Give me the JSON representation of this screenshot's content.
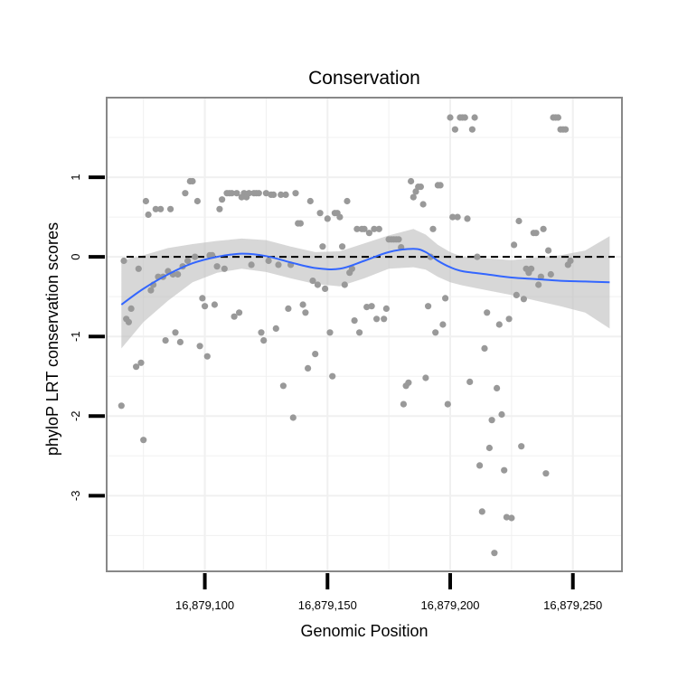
{
  "chart_data": {
    "type": "scatter",
    "title": "Conservation",
    "xlabel": "Genomic Position",
    "ylabel": "phyloP LRT conservation scores",
    "xlim": [
      16879060,
      16879270
    ],
    "ylim": [
      -3.95,
      2.0
    ],
    "x_ticks": [
      16879100,
      16879150,
      16879200,
      16879250
    ],
    "x_tick_labels": [
      "16,879,100",
      "16,879,150",
      "16,879,200",
      "16,879,250"
    ],
    "y_ticks": [
      1,
      0,
      -1,
      -2,
      -3
    ],
    "y_tick_labels": [
      "1",
      "0",
      "-1",
      "-2",
      "-3"
    ],
    "reference_line": {
      "y": 0,
      "style": "dashed"
    },
    "colors": {
      "points": "#999999",
      "smooth": "#3366ff",
      "ribbon": "#bdbdbd",
      "panel_border": "#888888",
      "grid": "#f0f0f0",
      "axis_ticks": "#000000"
    },
    "points": [
      [
        16879066,
        -1.87
      ],
      [
        16879067,
        -0.05
      ],
      [
        16879068,
        -0.78
      ],
      [
        16879069,
        -0.82
      ],
      [
        16879070,
        -0.65
      ],
      [
        16879072,
        -1.38
      ],
      [
        16879073,
        -0.15
      ],
      [
        16879074,
        -1.33
      ],
      [
        16879075,
        -2.3
      ],
      [
        16879076,
        0.7
      ],
      [
        16879077,
        0.53
      ],
      [
        16879078,
        -0.42
      ],
      [
        16879079,
        -0.35
      ],
      [
        16879080,
        0.6
      ],
      [
        16879081,
        -0.25
      ],
      [
        16879082,
        0.6
      ],
      [
        16879083,
        -0.25
      ],
      [
        16879084,
        -1.05
      ],
      [
        16879085,
        -0.18
      ],
      [
        16879086,
        0.6
      ],
      [
        16879087,
        -0.22
      ],
      [
        16879088,
        -0.95
      ],
      [
        16879089,
        -0.22
      ],
      [
        16879090,
        -1.07
      ],
      [
        16879091,
        -0.12
      ],
      [
        16879092,
        0.8
      ],
      [
        16879093,
        -0.05
      ],
      [
        16879094,
        0.95
      ],
      [
        16879095,
        0.95
      ],
      [
        16879096,
        0.0
      ],
      [
        16879097,
        0.7
      ],
      [
        16879098,
        -1.12
      ],
      [
        16879099,
        -0.52
      ],
      [
        16879100,
        -0.62
      ],
      [
        16879101,
        -1.25
      ],
      [
        16879102,
        0.02
      ],
      [
        16879103,
        0.02
      ],
      [
        16879104,
        -0.6
      ],
      [
        16879105,
        -0.12
      ],
      [
        16879106,
        0.6
      ],
      [
        16879107,
        0.72
      ],
      [
        16879108,
        -0.15
      ],
      [
        16879109,
        0.8
      ],
      [
        16879110,
        0.8
      ],
      [
        16879111,
        0.8
      ],
      [
        16879112,
        -0.75
      ],
      [
        16879113,
        0.8
      ],
      [
        16879114,
        -0.7
      ],
      [
        16879115,
        0.75
      ],
      [
        16879116,
        0.8
      ],
      [
        16879117,
        0.75
      ],
      [
        16879118,
        0.8
      ],
      [
        16879119,
        -0.1
      ],
      [
        16879120,
        0.8
      ],
      [
        16879121,
        0.8
      ],
      [
        16879122,
        0.8
      ],
      [
        16879123,
        -0.95
      ],
      [
        16879124,
        -1.05
      ],
      [
        16879125,
        0.8
      ],
      [
        16879126,
        -0.05
      ],
      [
        16879127,
        0.78
      ],
      [
        16879128,
        0.78
      ],
      [
        16879129,
        -0.9
      ],
      [
        16879130,
        -0.1
      ],
      [
        16879131,
        0.78
      ],
      [
        16879132,
        -1.62
      ],
      [
        16879133,
        0.78
      ],
      [
        16879134,
        -0.65
      ],
      [
        16879135,
        -0.1
      ],
      [
        16879136,
        -2.02
      ],
      [
        16879137,
        0.8
      ],
      [
        16879138,
        0.42
      ],
      [
        16879139,
        0.42
      ],
      [
        16879140,
        -0.6
      ],
      [
        16879141,
        -0.7
      ],
      [
        16879142,
        -1.4
      ],
      [
        16879143,
        0.7
      ],
      [
        16879144,
        -0.3
      ],
      [
        16879145,
        -1.22
      ],
      [
        16879146,
        -0.35
      ],
      [
        16879147,
        0.55
      ],
      [
        16879148,
        0.13
      ],
      [
        16879149,
        -0.4
      ],
      [
        16879150,
        0.48
      ],
      [
        16879151,
        -0.95
      ],
      [
        16879152,
        -1.5
      ],
      [
        16879153,
        0.55
      ],
      [
        16879154,
        0.55
      ],
      [
        16879155,
        0.5
      ],
      [
        16879156,
        0.13
      ],
      [
        16879157,
        -0.35
      ],
      [
        16879158,
        0.7
      ],
      [
        16879159,
        -0.2
      ],
      [
        16879160,
        -0.15
      ],
      [
        16879161,
        -0.8
      ],
      [
        16879162,
        0.35
      ],
      [
        16879163,
        -0.95
      ],
      [
        16879164,
        0.35
      ],
      [
        16879165,
        0.35
      ],
      [
        16879166,
        -0.63
      ],
      [
        16879167,
        0.3
      ],
      [
        16879168,
        -0.62
      ],
      [
        16879169,
        0.35
      ],
      [
        16879170,
        -0.78
      ],
      [
        16879171,
        0.35
      ],
      [
        16879173,
        -0.78
      ],
      [
        16879174,
        -0.65
      ],
      [
        16879175,
        0.22
      ],
      [
        16879176,
        0.22
      ],
      [
        16879177,
        0.22
      ],
      [
        16879178,
        0.22
      ],
      [
        16879179,
        0.22
      ],
      [
        16879180,
        0.12
      ],
      [
        16879181,
        -1.85
      ],
      [
        16879182,
        -1.62
      ],
      [
        16879183,
        -1.58
      ],
      [
        16879184,
        0.95
      ],
      [
        16879185,
        0.75
      ],
      [
        16879186,
        0.82
      ],
      [
        16879187,
        0.88
      ],
      [
        16879188,
        0.88
      ],
      [
        16879189,
        0.66
      ],
      [
        16879190,
        -1.52
      ],
      [
        16879191,
        -0.62
      ],
      [
        16879192,
        0.0
      ],
      [
        16879193,
        0.35
      ],
      [
        16879194,
        -0.95
      ],
      [
        16879195,
        0.9
      ],
      [
        16879196,
        0.9
      ],
      [
        16879197,
        -0.85
      ],
      [
        16879198,
        -0.52
      ],
      [
        16879199,
        -1.85
      ],
      [
        16879200,
        1.75
      ],
      [
        16879201,
        0.5
      ],
      [
        16879202,
        1.6
      ],
      [
        16879203,
        0.5
      ],
      [
        16879204,
        1.75
      ],
      [
        16879205,
        1.75
      ],
      [
        16879206,
        1.75
      ],
      [
        16879207,
        0.48
      ],
      [
        16879208,
        -1.57
      ],
      [
        16879209,
        1.6
      ],
      [
        16879210,
        1.75
      ],
      [
        16879211,
        0.0
      ],
      [
        16879212,
        -2.62
      ],
      [
        16879213,
        -3.2
      ],
      [
        16879214,
        -1.15
      ],
      [
        16879215,
        -0.7
      ],
      [
        16879216,
        -2.4
      ],
      [
        16879217,
        -2.05
      ],
      [
        16879218,
        -3.72
      ],
      [
        16879219,
        -1.65
      ],
      [
        16879220,
        -0.85
      ],
      [
        16879221,
        -1.98
      ],
      [
        16879222,
        -2.68
      ],
      [
        16879223,
        -3.27
      ],
      [
        16879224,
        -0.78
      ],
      [
        16879225,
        -3.28
      ],
      [
        16879226,
        0.15
      ],
      [
        16879227,
        -0.48
      ],
      [
        16879228,
        0.45
      ],
      [
        16879229,
        -2.38
      ],
      [
        16879230,
        -0.53
      ],
      [
        16879231,
        -0.15
      ],
      [
        16879232,
        -0.2
      ],
      [
        16879233,
        -0.15
      ],
      [
        16879234,
        0.3
      ],
      [
        16879235,
        0.3
      ],
      [
        16879236,
        -0.35
      ],
      [
        16879237,
        -0.25
      ],
      [
        16879238,
        0.35
      ],
      [
        16879239,
        -2.72
      ],
      [
        16879240,
        0.08
      ],
      [
        16879241,
        -0.22
      ],
      [
        16879242,
        1.75
      ],
      [
        16879243,
        1.75
      ],
      [
        16879244,
        1.75
      ],
      [
        16879245,
        1.6
      ],
      [
        16879246,
        1.6
      ],
      [
        16879247,
        1.6
      ],
      [
        16879248,
        -0.1
      ],
      [
        16879249,
        -0.05
      ]
    ],
    "smooth": {
      "x": [
        16879066,
        16879075,
        16879085,
        16879095,
        16879105,
        16879115,
        16879125,
        16879135,
        16879145,
        16879155,
        16879165,
        16879175,
        16879185,
        16879190,
        16879195,
        16879200,
        16879205,
        16879215,
        16879225,
        16879235,
        16879245,
        16879255,
        16879265
      ],
      "y": [
        -0.6,
        -0.4,
        -0.22,
        -0.08,
        0.0,
        0.04,
        0.01,
        -0.07,
        -0.14,
        -0.15,
        -0.05,
        0.06,
        0.1,
        0.06,
        -0.05,
        -0.13,
        -0.18,
        -0.22,
        -0.26,
        -0.28,
        -0.3,
        -0.31,
        -0.32
      ],
      "lower": [
        -1.15,
        -0.82,
        -0.55,
        -0.32,
        -0.2,
        -0.15,
        -0.19,
        -0.27,
        -0.34,
        -0.37,
        -0.27,
        -0.15,
        -0.13,
        -0.16,
        -0.25,
        -0.32,
        -0.36,
        -0.42,
        -0.48,
        -0.55,
        -0.62,
        -0.7,
        -0.9
      ],
      "upper": [
        -0.05,
        0.02,
        0.11,
        0.16,
        0.2,
        0.23,
        0.21,
        0.13,
        0.06,
        0.07,
        0.17,
        0.27,
        0.35,
        0.28,
        0.15,
        0.06,
        0.0,
        -0.02,
        -0.04,
        -0.01,
        0.02,
        0.08,
        0.26
      ]
    }
  }
}
